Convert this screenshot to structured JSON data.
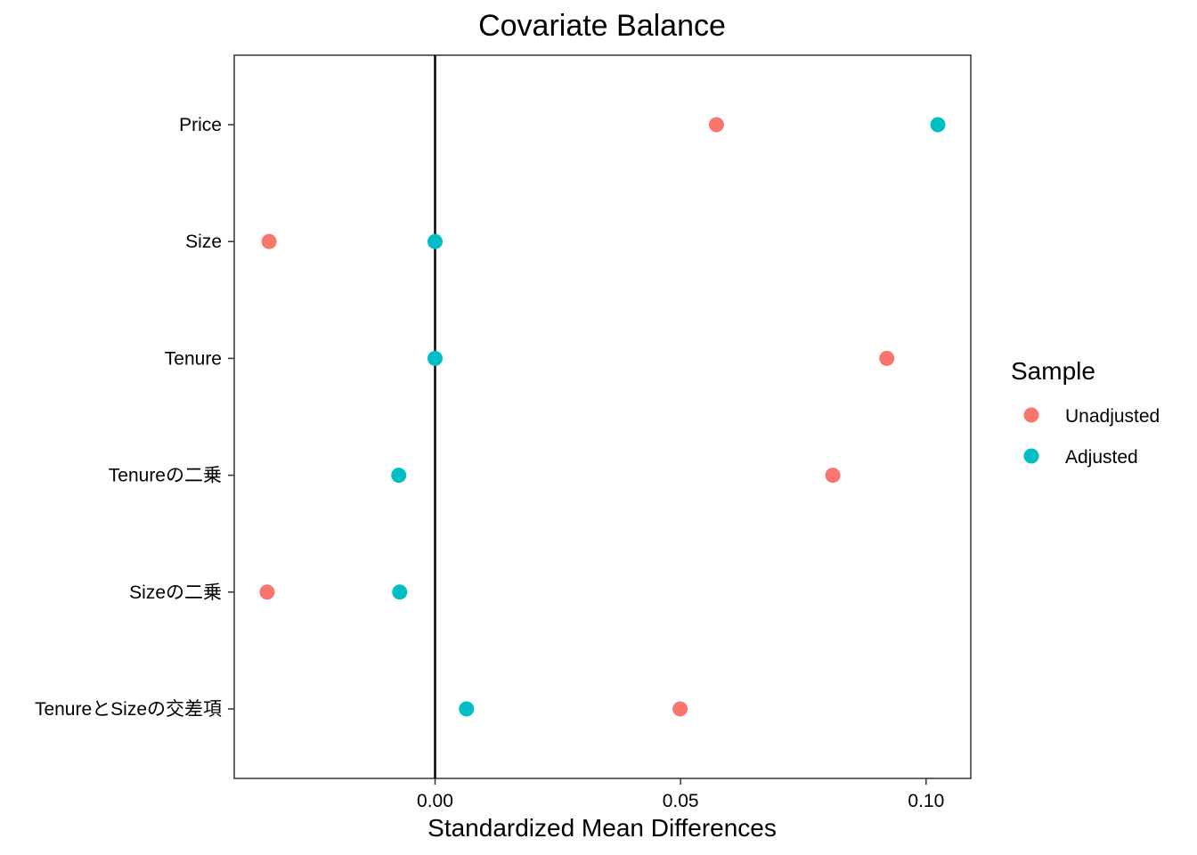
{
  "chart_data": {
    "type": "scatter",
    "title": "Covariate Balance",
    "xlabel": "Standardized Mean Differences",
    "ylabel": "",
    "xlim": [
      -0.0409,
      0.1091
    ],
    "x_ticks": [
      0.0,
      0.05,
      0.1
    ],
    "x_tick_labels": [
      "0.00",
      "0.05",
      "0.10"
    ],
    "reference_line_x": 0,
    "grid": false,
    "categories": [
      "Price",
      "Size",
      "Tenure",
      "Tenureの二乗",
      "Sizeの二乗",
      "TenureとSizeの交差項"
    ],
    "series": [
      {
        "name": "Unadjusted",
        "color": "#F8766D",
        "values": [
          0.0573,
          -0.0338,
          0.092,
          0.081,
          -0.0342,
          0.0499
        ]
      },
      {
        "name": "Adjusted",
        "color": "#00BFC4",
        "values": [
          0.1024,
          0.0,
          0.0,
          -0.0074,
          -0.0072,
          0.0064
        ]
      }
    ],
    "legend": {
      "title": "Sample",
      "position": "right",
      "items": [
        {
          "label": "Unadjusted",
          "color": "#F8766D"
        },
        {
          "label": "Adjusted",
          "color": "#00BFC4"
        }
      ]
    }
  }
}
